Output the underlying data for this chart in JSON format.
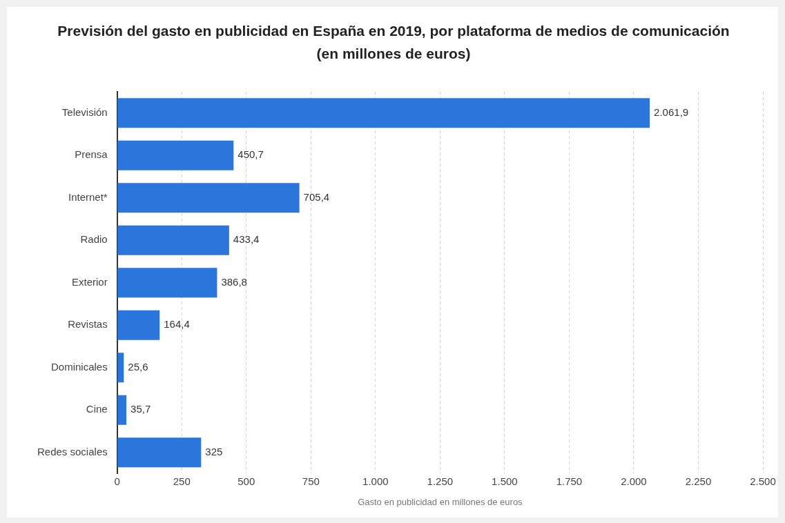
{
  "chart_data": {
    "type": "bar",
    "orientation": "horizontal",
    "title": "Previsión del gasto en publicidad en España en 2019, por plataforma de medios de comunicación (en millones de euros)",
    "xlabel": "Gasto en publicidad en millones de euros",
    "categories": [
      "Televisión",
      "Prensa",
      "Internet*",
      "Radio",
      "Exterior",
      "Revistas",
      "Dominicales",
      "Cine",
      "Redes sociales"
    ],
    "values": [
      2061.9,
      450.7,
      705.4,
      433.4,
      386.8,
      164.4,
      25.6,
      35.7,
      325
    ],
    "value_labels": [
      "2.061,9",
      "450,7",
      "705,4",
      "433,4",
      "386,8",
      "164,4",
      "25,6",
      "35,7",
      "325"
    ],
    "color": "#2a76dd",
    "xlim": [
      0,
      2500
    ],
    "xticks": [
      0,
      250,
      500,
      750,
      {
        "value": 1000,
        "label": "1.000"
      },
      {
        "value": 1250,
        "label": "1.250"
      },
      {
        "value": 1500,
        "label": "1.500"
      },
      {
        "value": 1750,
        "label": "1.750"
      },
      {
        "value": 2000,
        "label": "2.000"
      },
      {
        "value": 2250,
        "label": "2.250"
      },
      {
        "value": 2500,
        "label": "2.500"
      }
    ],
    "grid": "x",
    "legend": false
  }
}
